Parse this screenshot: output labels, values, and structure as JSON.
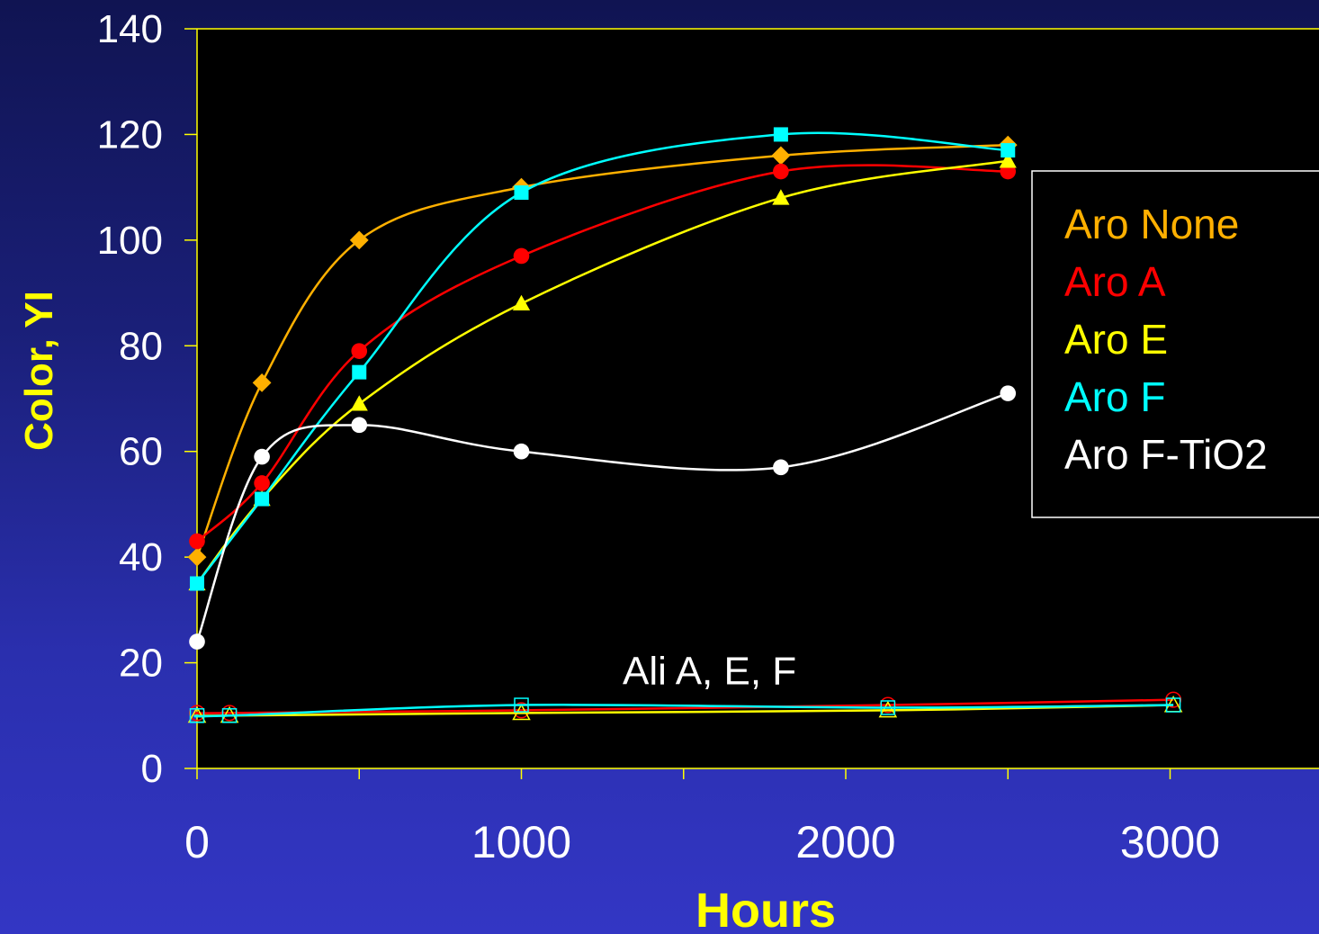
{
  "chart_data": {
    "type": "line",
    "title": "",
    "xlabel": "Hours",
    "ylabel": "Color, YI",
    "xlim": [
      0,
      3500
    ],
    "ylim": [
      0,
      140
    ],
    "x_ticks": [
      0,
      1000,
      2000,
      3000
    ],
    "y_ticks": [
      0,
      20,
      40,
      60,
      80,
      100,
      120,
      140
    ],
    "x_tick_labels": [
      "0",
      "1000",
      "2000",
      "3000"
    ],
    "y_tick_labels": [
      "0",
      "20",
      "40",
      "60",
      "80",
      "100",
      "120",
      "140"
    ],
    "grid": false,
    "legend_placement": "right",
    "plot_background": "#000000",
    "annotation": {
      "text": "Ali A, E, F",
      "x": 1580,
      "y": 18.5
    },
    "series": [
      {
        "name": "Aro None",
        "color": "#ffb000",
        "marker": "diamond",
        "filled": true,
        "legend": true,
        "x": [
          0,
          200,
          500,
          1000,
          1800,
          2500
        ],
        "y": [
          40,
          73,
          100,
          110,
          116,
          118
        ]
      },
      {
        "name": "Aro A",
        "color": "#ff0000",
        "marker": "circle",
        "filled": true,
        "legend": true,
        "x": [
          0,
          200,
          500,
          1000,
          1800,
          2500
        ],
        "y": [
          43,
          54,
          79,
          97,
          113,
          113
        ]
      },
      {
        "name": "Aro E",
        "color": "#ffff00",
        "marker": "triangle",
        "filled": true,
        "legend": true,
        "x": [
          0,
          200,
          500,
          1000,
          1800,
          2500
        ],
        "y": [
          35,
          51,
          69,
          88,
          108,
          115
        ]
      },
      {
        "name": "Aro F",
        "color": "#00ffff",
        "marker": "square",
        "filled": true,
        "legend": true,
        "x": [
          0,
          200,
          500,
          1000,
          1800,
          2500
        ],
        "y": [
          35,
          51,
          75,
          109,
          120,
          117
        ]
      },
      {
        "name": "Aro F-TiO2",
        "color": "#ffffff",
        "marker": "circle",
        "filled": true,
        "legend": true,
        "x": [
          0,
          200,
          500,
          1000,
          1800,
          2500
        ],
        "y": [
          24,
          59,
          65,
          60,
          57,
          71
        ]
      },
      {
        "color": "#ff0000",
        "marker": "circle",
        "filled": false,
        "legend": false,
        "x": [
          0,
          100,
          1000,
          2130,
          3010
        ],
        "y": [
          10.5,
          10.5,
          11,
          12,
          13
        ]
      },
      {
        "color": "#ffff00",
        "marker": "triangle",
        "filled": false,
        "legend": false,
        "x": [
          0,
          100,
          1000,
          2130,
          3010
        ],
        "y": [
          10,
          10,
          10.5,
          11,
          12
        ]
      },
      {
        "color": "#00ffff",
        "marker": "square",
        "filled": false,
        "legend": false,
        "x": [
          0,
          100,
          1000,
          2130,
          3010
        ],
        "y": [
          10,
          10,
          12,
          11.5,
          12
        ]
      }
    ]
  }
}
